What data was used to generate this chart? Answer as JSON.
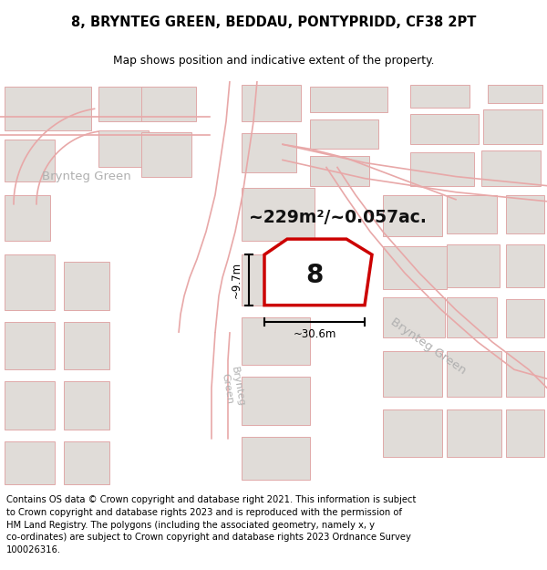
{
  "title_line1": "8, BRYNTEG GREEN, BEDDAU, PONTYPRIDD, CF38 2PT",
  "title_line2": "Map shows position and indicative extent of the property.",
  "footer_text": "Contains OS data © Crown copyright and database right 2021. This information is subject\nto Crown copyright and database rights 2023 and is reproduced with the permission of\nHM Land Registry. The polygons (including the associated geometry, namely x, y\nco-ordinates) are subject to Crown copyright and database rights 2023 Ordnance Survey\n100026316.",
  "map_bg": "#f8f6f4",
  "road_outline": "#e8a8a8",
  "bld_fill": "#e0dcd8",
  "bld_edge": "#e0a8a8",
  "prop_fill": "#ffffff",
  "prop_edge": "#cc0000",
  "area_text": "~229m²/~0.057ac.",
  "width_text": "~30.6m",
  "height_text": "~9.7m",
  "prop_label": "8",
  "street_color": "#b0b0b0",
  "title_fs": 10.5,
  "footer_fs": 7.2,
  "map_xlim": [
    0,
    600
  ],
  "map_ylim": [
    0,
    444
  ]
}
